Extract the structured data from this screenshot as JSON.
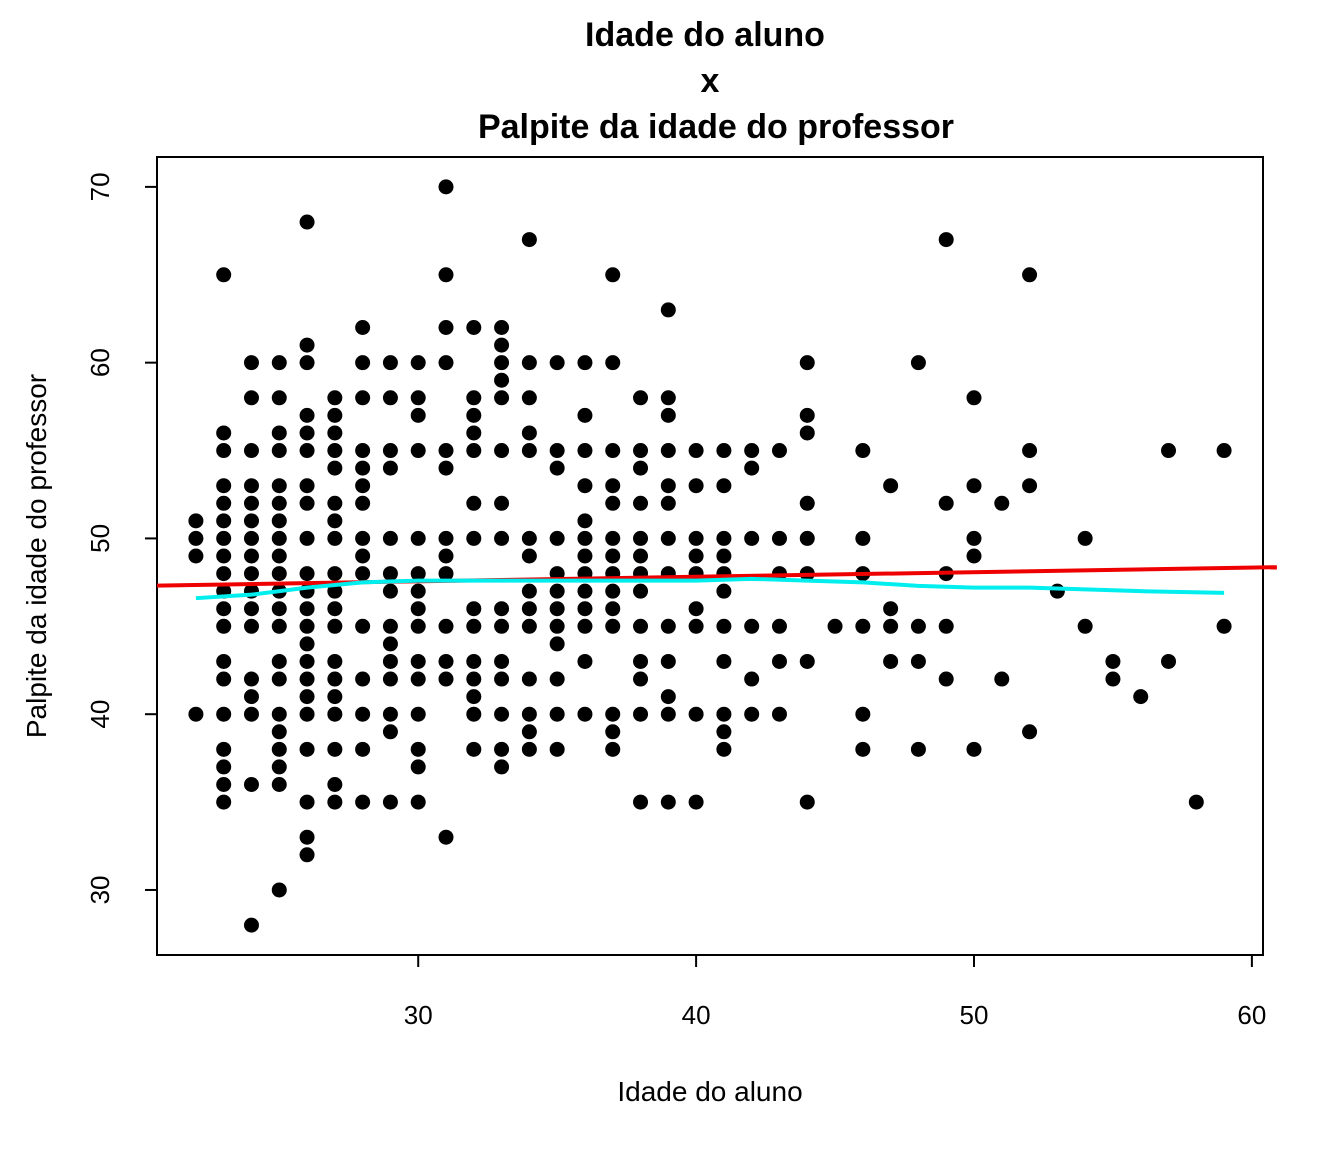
{
  "chart_data": {
    "type": "scatter",
    "title_lines": [
      "Idade do aluno",
      "x",
      "Palpite da idade do professor"
    ],
    "xlabel": "Idade do aluno",
    "ylabel": "Palpite da idade do professor",
    "xlim": [
      20.6,
      60.4
    ],
    "ylim": [
      26.3,
      71.7
    ],
    "x_ticks": [
      30,
      40,
      50,
      60
    ],
    "y_ticks": [
      30,
      40,
      50,
      60,
      70
    ],
    "grid": false,
    "legend": "none",
    "point_color": "#000000",
    "points": [
      [
        22,
        51
      ],
      [
        22,
        50
      ],
      [
        22,
        49
      ],
      [
        22,
        40
      ],
      [
        23,
        65
      ],
      [
        23,
        56
      ],
      [
        23,
        55
      ],
      [
        23,
        53
      ],
      [
        23,
        52
      ],
      [
        23,
        51
      ],
      [
        23,
        50
      ],
      [
        23,
        49
      ],
      [
        23,
        48
      ],
      [
        23,
        47
      ],
      [
        23,
        46
      ],
      [
        23,
        45
      ],
      [
        23,
        43
      ],
      [
        23,
        42
      ],
      [
        23,
        40
      ],
      [
        23,
        38
      ],
      [
        23,
        37
      ],
      [
        23,
        36
      ],
      [
        23,
        35
      ],
      [
        24,
        60
      ],
      [
        24,
        58
      ],
      [
        24,
        55
      ],
      [
        24,
        53
      ],
      [
        24,
        52
      ],
      [
        24,
        51
      ],
      [
        24,
        50
      ],
      [
        24,
        49
      ],
      [
        24,
        48
      ],
      [
        24,
        47
      ],
      [
        24,
        46
      ],
      [
        24,
        45
      ],
      [
        24,
        42
      ],
      [
        24,
        41
      ],
      [
        24,
        40
      ],
      [
        24,
        36
      ],
      [
        24,
        28
      ],
      [
        25,
        60
      ],
      [
        25,
        58
      ],
      [
        25,
        56
      ],
      [
        25,
        55
      ],
      [
        25,
        53
      ],
      [
        25,
        52
      ],
      [
        25,
        51
      ],
      [
        25,
        50
      ],
      [
        25,
        49
      ],
      [
        25,
        48
      ],
      [
        25,
        47
      ],
      [
        25,
        46
      ],
      [
        25,
        45
      ],
      [
        25,
        43
      ],
      [
        25,
        42
      ],
      [
        25,
        40
      ],
      [
        25,
        39
      ],
      [
        25,
        38
      ],
      [
        25,
        37
      ],
      [
        25,
        36
      ],
      [
        25,
        30
      ],
      [
        26,
        68
      ],
      [
        26,
        61
      ],
      [
        26,
        60
      ],
      [
        26,
        57
      ],
      [
        26,
        56
      ],
      [
        26,
        55
      ],
      [
        26,
        53
      ],
      [
        26,
        52
      ],
      [
        26,
        50
      ],
      [
        26,
        48
      ],
      [
        26,
        47
      ],
      [
        26,
        46
      ],
      [
        26,
        45
      ],
      [
        26,
        44
      ],
      [
        26,
        43
      ],
      [
        26,
        42
      ],
      [
        26,
        41
      ],
      [
        26,
        40
      ],
      [
        26,
        38
      ],
      [
        26,
        35
      ],
      [
        26,
        33
      ],
      [
        26,
        32
      ],
      [
        27,
        58
      ],
      [
        27,
        57
      ],
      [
        27,
        56
      ],
      [
        27,
        55
      ],
      [
        27,
        54
      ],
      [
        27,
        52
      ],
      [
        27,
        51
      ],
      [
        27,
        50
      ],
      [
        27,
        48
      ],
      [
        27,
        47
      ],
      [
        27,
        46
      ],
      [
        27,
        45
      ],
      [
        27,
        43
      ],
      [
        27,
        42
      ],
      [
        27,
        41
      ],
      [
        27,
        40
      ],
      [
        27,
        38
      ],
      [
        27,
        36
      ],
      [
        27,
        35
      ],
      [
        28,
        62
      ],
      [
        28,
        60
      ],
      [
        28,
        58
      ],
      [
        28,
        55
      ],
      [
        28,
        54
      ],
      [
        28,
        53
      ],
      [
        28,
        52
      ],
      [
        28,
        50
      ],
      [
        28,
        49
      ],
      [
        28,
        48
      ],
      [
        28,
        45
      ],
      [
        28,
        42
      ],
      [
        28,
        40
      ],
      [
        28,
        38
      ],
      [
        28,
        35
      ],
      [
        29,
        60
      ],
      [
        29,
        58
      ],
      [
        29,
        55
      ],
      [
        29,
        54
      ],
      [
        29,
        50
      ],
      [
        29,
        48
      ],
      [
        29,
        47
      ],
      [
        29,
        45
      ],
      [
        29,
        44
      ],
      [
        29,
        43
      ],
      [
        29,
        42
      ],
      [
        29,
        40
      ],
      [
        29,
        39
      ],
      [
        29,
        35
      ],
      [
        30,
        60
      ],
      [
        30,
        58
      ],
      [
        30,
        57
      ],
      [
        30,
        55
      ],
      [
        30,
        50
      ],
      [
        30,
        48
      ],
      [
        30,
        47
      ],
      [
        30,
        46
      ],
      [
        30,
        45
      ],
      [
        30,
        43
      ],
      [
        30,
        42
      ],
      [
        30,
        40
      ],
      [
        30,
        38
      ],
      [
        30,
        37
      ],
      [
        30,
        35
      ],
      [
        31,
        70
      ],
      [
        31,
        65
      ],
      [
        31,
        62
      ],
      [
        31,
        60
      ],
      [
        31,
        55
      ],
      [
        31,
        54
      ],
      [
        31,
        50
      ],
      [
        31,
        49
      ],
      [
        31,
        48
      ],
      [
        31,
        45
      ],
      [
        31,
        43
      ],
      [
        31,
        42
      ],
      [
        31,
        33
      ],
      [
        32,
        62
      ],
      [
        32,
        58
      ],
      [
        32,
        57
      ],
      [
        32,
        56
      ],
      [
        32,
        55
      ],
      [
        32,
        52
      ],
      [
        32,
        50
      ],
      [
        32,
        46
      ],
      [
        32,
        45
      ],
      [
        32,
        43
      ],
      [
        32,
        42
      ],
      [
        32,
        41
      ],
      [
        32,
        40
      ],
      [
        32,
        38
      ],
      [
        33,
        62
      ],
      [
        33,
        61
      ],
      [
        33,
        60
      ],
      [
        33,
        59
      ],
      [
        33,
        58
      ],
      [
        33,
        55
      ],
      [
        33,
        52
      ],
      [
        33,
        50
      ],
      [
        33,
        46
      ],
      [
        33,
        45
      ],
      [
        33,
        43
      ],
      [
        33,
        42
      ],
      [
        33,
        40
      ],
      [
        33,
        38
      ],
      [
        33,
        37
      ],
      [
        34,
        67
      ],
      [
        34,
        60
      ],
      [
        34,
        58
      ],
      [
        34,
        56
      ],
      [
        34,
        55
      ],
      [
        34,
        50
      ],
      [
        34,
        49
      ],
      [
        34,
        47
      ],
      [
        34,
        46
      ],
      [
        34,
        45
      ],
      [
        34,
        42
      ],
      [
        34,
        40
      ],
      [
        34,
        39
      ],
      [
        34,
        38
      ],
      [
        35,
        60
      ],
      [
        35,
        55
      ],
      [
        35,
        54
      ],
      [
        35,
        50
      ],
      [
        35,
        48
      ],
      [
        35,
        47
      ],
      [
        35,
        46
      ],
      [
        35,
        45
      ],
      [
        35,
        44
      ],
      [
        35,
        42
      ],
      [
        35,
        40
      ],
      [
        35,
        38
      ],
      [
        36,
        60
      ],
      [
        36,
        57
      ],
      [
        36,
        55
      ],
      [
        36,
        53
      ],
      [
        36,
        51
      ],
      [
        36,
        50
      ],
      [
        36,
        49
      ],
      [
        36,
        48
      ],
      [
        36,
        47
      ],
      [
        36,
        46
      ],
      [
        36,
        45
      ],
      [
        36,
        43
      ],
      [
        36,
        40
      ],
      [
        37,
        65
      ],
      [
        37,
        60
      ],
      [
        37,
        55
      ],
      [
        37,
        53
      ],
      [
        37,
        52
      ],
      [
        37,
        50
      ],
      [
        37,
        49
      ],
      [
        37,
        48
      ],
      [
        37,
        47
      ],
      [
        37,
        46
      ],
      [
        37,
        45
      ],
      [
        37,
        40
      ],
      [
        37,
        39
      ],
      [
        37,
        38
      ],
      [
        38,
        58
      ],
      [
        38,
        55
      ],
      [
        38,
        54
      ],
      [
        38,
        52
      ],
      [
        38,
        50
      ],
      [
        38,
        49
      ],
      [
        38,
        48
      ],
      [
        38,
        47
      ],
      [
        38,
        45
      ],
      [
        38,
        43
      ],
      [
        38,
        42
      ],
      [
        38,
        40
      ],
      [
        38,
        35
      ],
      [
        39,
        63
      ],
      [
        39,
        58
      ],
      [
        39,
        57
      ],
      [
        39,
        55
      ],
      [
        39,
        53
      ],
      [
        39,
        52
      ],
      [
        39,
        50
      ],
      [
        39,
        48
      ],
      [
        39,
        45
      ],
      [
        39,
        43
      ],
      [
        39,
        41
      ],
      [
        39,
        40
      ],
      [
        39,
        35
      ],
      [
        40,
        55
      ],
      [
        40,
        53
      ],
      [
        40,
        50
      ],
      [
        40,
        49
      ],
      [
        40,
        48
      ],
      [
        40,
        46
      ],
      [
        40,
        45
      ],
      [
        40,
        40
      ],
      [
        40,
        35
      ],
      [
        41,
        55
      ],
      [
        41,
        53
      ],
      [
        41,
        50
      ],
      [
        41,
        49
      ],
      [
        41,
        48
      ],
      [
        41,
        47
      ],
      [
        41,
        45
      ],
      [
        41,
        43
      ],
      [
        41,
        40
      ],
      [
        41,
        39
      ],
      [
        41,
        38
      ],
      [
        42,
        55
      ],
      [
        42,
        54
      ],
      [
        42,
        50
      ],
      [
        42,
        45
      ],
      [
        42,
        42
      ],
      [
        42,
        40
      ],
      [
        43,
        55
      ],
      [
        43,
        50
      ],
      [
        43,
        48
      ],
      [
        43,
        45
      ],
      [
        43,
        43
      ],
      [
        43,
        40
      ],
      [
        44,
        60
      ],
      [
        44,
        57
      ],
      [
        44,
        56
      ],
      [
        44,
        52
      ],
      [
        44,
        50
      ],
      [
        44,
        48
      ],
      [
        44,
        43
      ],
      [
        44,
        35
      ],
      [
        45,
        45
      ],
      [
        46,
        55
      ],
      [
        46,
        50
      ],
      [
        46,
        48
      ],
      [
        46,
        45
      ],
      [
        46,
        40
      ],
      [
        46,
        38
      ],
      [
        47,
        53
      ],
      [
        47,
        46
      ],
      [
        47,
        45
      ],
      [
        47,
        43
      ],
      [
        48,
        60
      ],
      [
        48,
        45
      ],
      [
        48,
        43
      ],
      [
        48,
        38
      ],
      [
        49,
        67
      ],
      [
        49,
        52
      ],
      [
        49,
        48
      ],
      [
        49,
        45
      ],
      [
        49,
        42
      ],
      [
        50,
        58
      ],
      [
        50,
        53
      ],
      [
        50,
        50
      ],
      [
        50,
        49
      ],
      [
        50,
        38
      ],
      [
        51,
        52
      ],
      [
        51,
        42
      ],
      [
        52,
        65
      ],
      [
        52,
        55
      ],
      [
        52,
        53
      ],
      [
        52,
        39
      ],
      [
        53,
        47
      ],
      [
        54,
        50
      ],
      [
        54,
        45
      ],
      [
        55,
        43
      ],
      [
        55,
        42
      ],
      [
        56,
        41
      ],
      [
        57,
        55
      ],
      [
        57,
        43
      ],
      [
        58,
        35
      ],
      [
        59,
        55
      ],
      [
        59,
        45
      ]
    ],
    "regression_line": {
      "color": "#ee0000",
      "intercept": 46.78,
      "slope": 0.026
    },
    "lowess_line": {
      "color": "#00eeee",
      "x": [
        22,
        24,
        26,
        28,
        30,
        32,
        34,
        36,
        38,
        40,
        42,
        44,
        46,
        48,
        50,
        52,
        54,
        56,
        59
      ],
      "y": [
        46.6,
        46.8,
        47.2,
        47.5,
        47.6,
        47.6,
        47.6,
        47.6,
        47.6,
        47.6,
        47.7,
        47.6,
        47.5,
        47.3,
        47.2,
        47.2,
        47.1,
        47.0,
        46.9
      ]
    }
  }
}
